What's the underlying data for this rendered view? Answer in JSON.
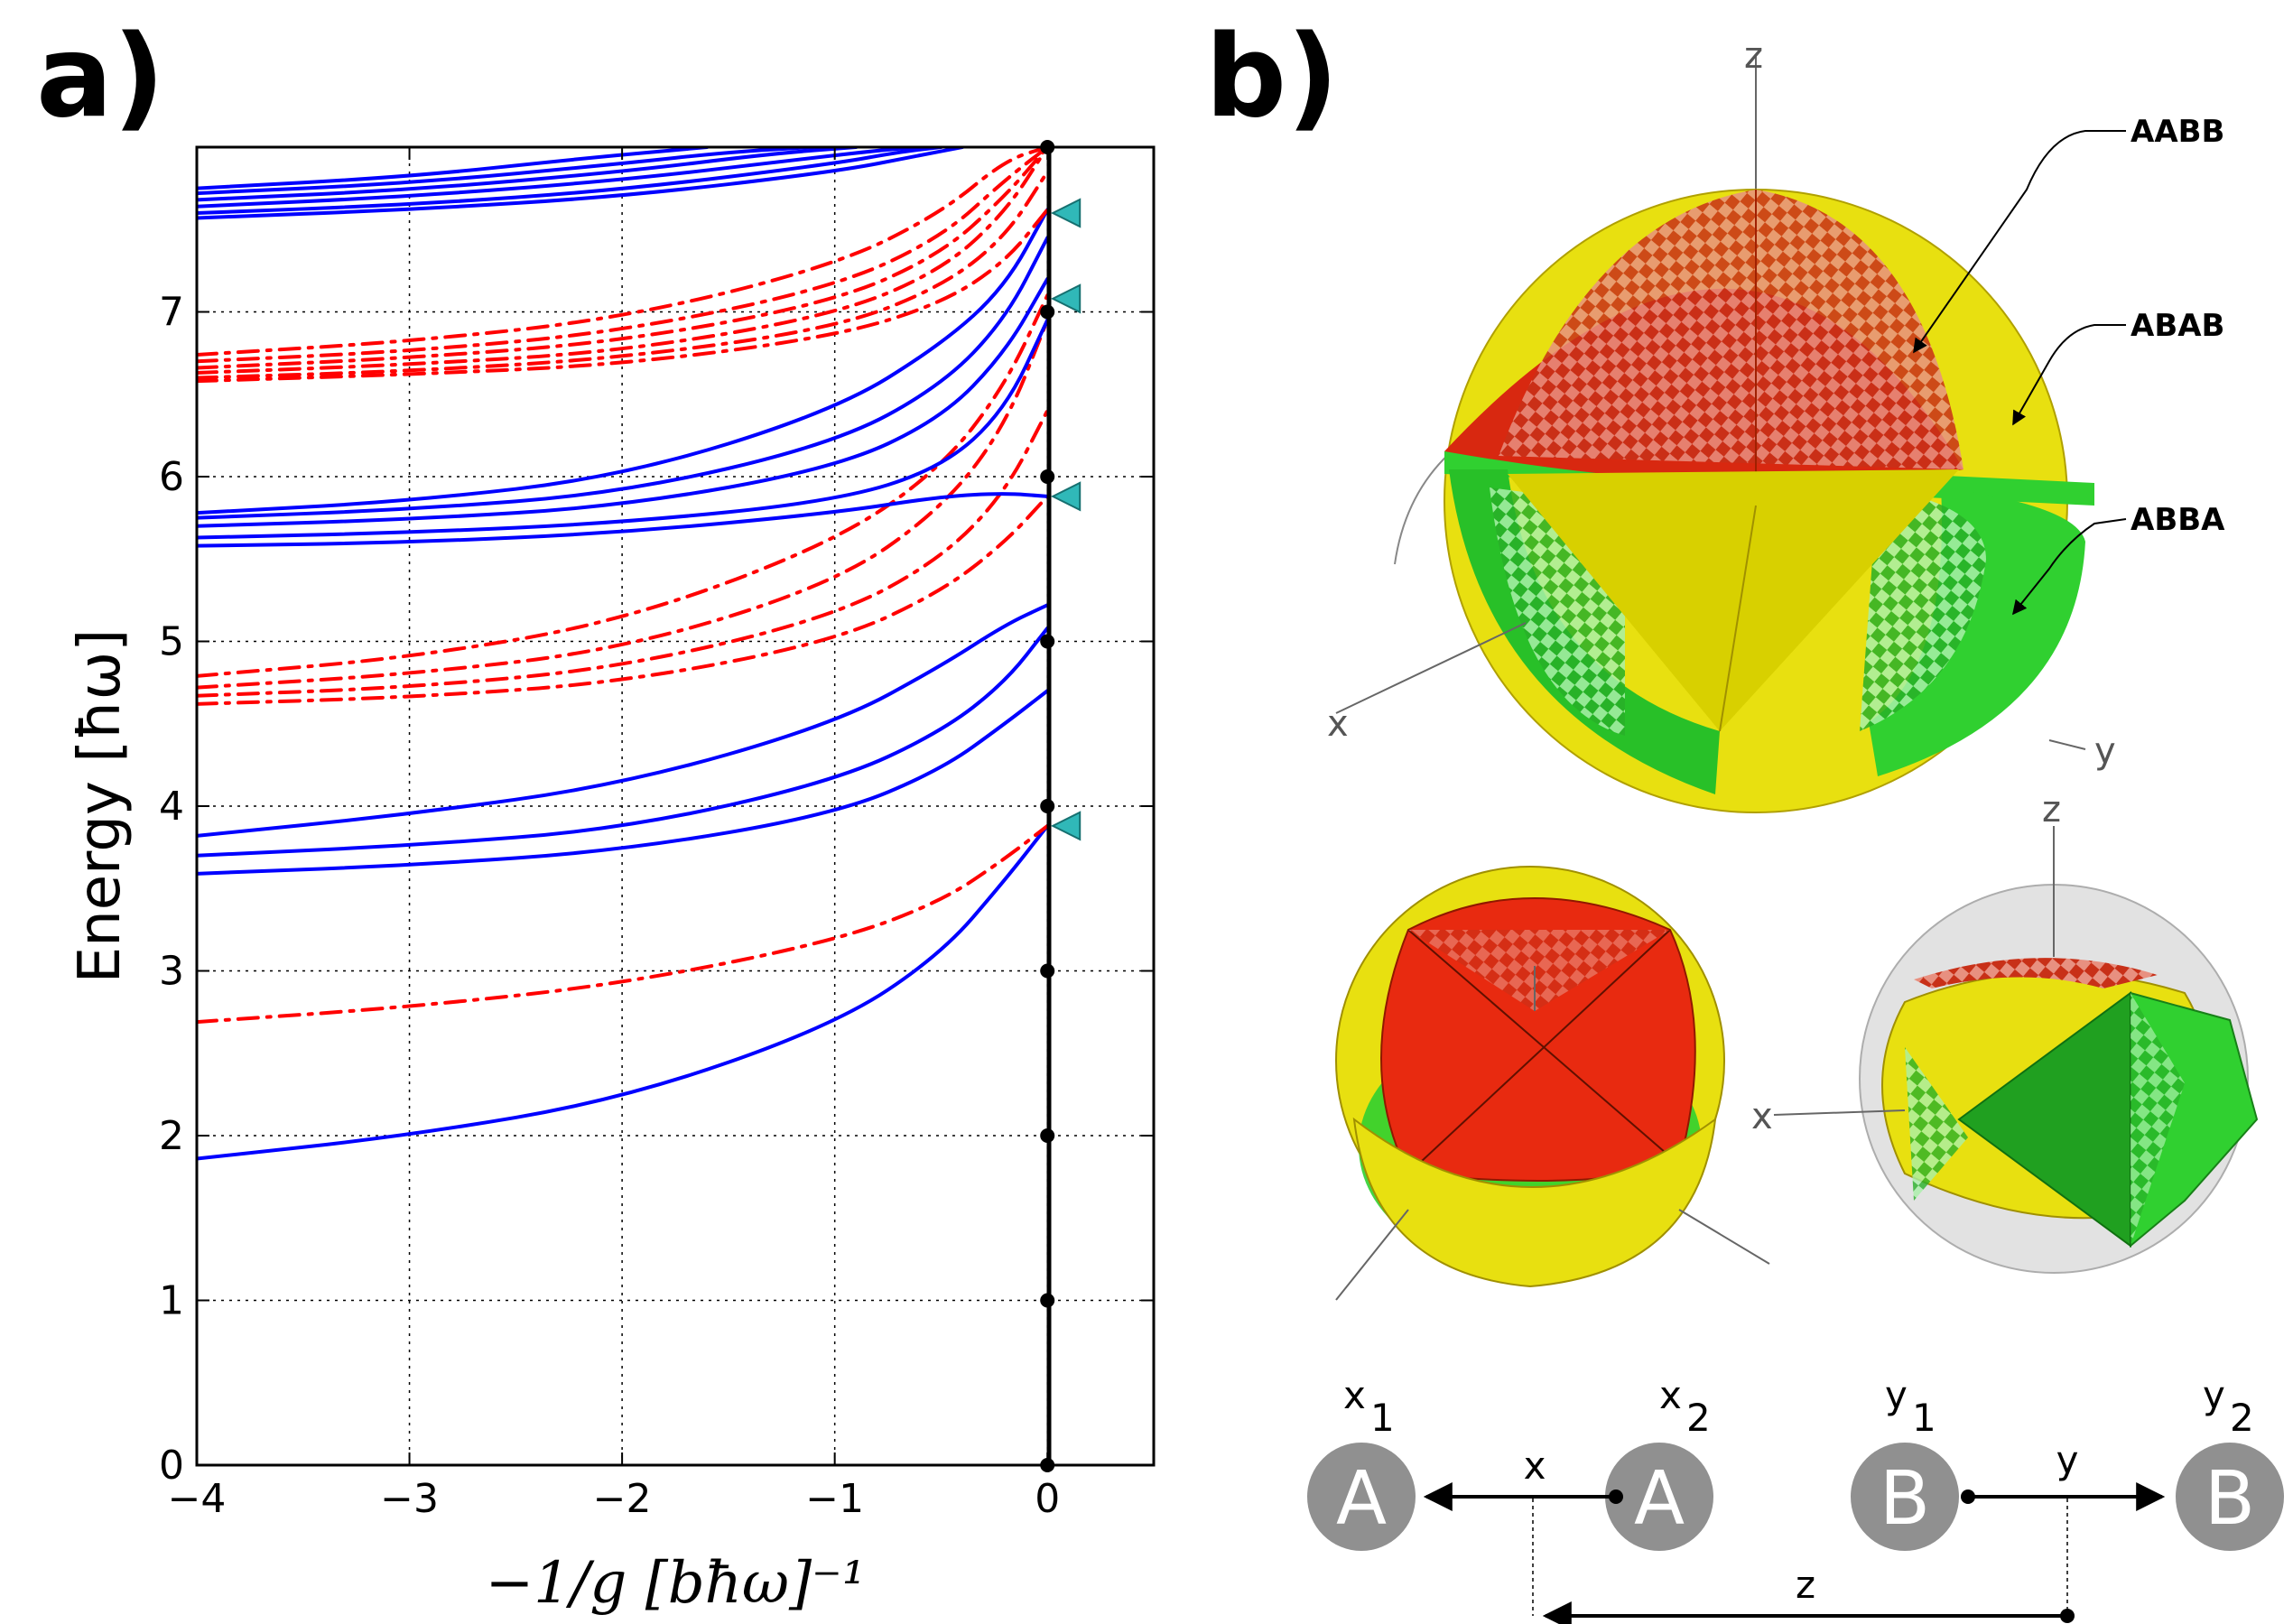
{
  "panel_a": {
    "label": "a)",
    "chart_data": {
      "type": "line",
      "xlabel": "−1/g [bħω]⁻¹",
      "ylabel": "Energy [ħω]",
      "xlim": [
        -4,
        0.5
      ],
      "ylim": [
        0,
        8
      ],
      "xticks": [
        -4,
        -3,
        -2,
        -1,
        0
      ],
      "xtick_labels": [
        "−4",
        "−3",
        "−2",
        "−1",
        "0"
      ],
      "yticks": [
        0,
        1,
        2,
        3,
        4,
        5,
        6,
        7
      ],
      "ytick_labels": [
        "0",
        "1",
        "2",
        "3",
        "4",
        "5",
        "6",
        "7"
      ],
      "grid": true,
      "solid_color": "#0000ff",
      "dashdot_color": "#ff0000",
      "marker_color": "#30b8b8",
      "unitary_points": [
        0,
        1,
        2,
        3,
        4,
        5,
        6,
        7,
        8
      ],
      "unitary_markers": [
        3.88,
        5.88,
        7.08,
        7.6
      ],
      "series": [
        {
          "style": "solid",
          "x": [
            -4,
            -3,
            -2,
            -1,
            -0.5,
            -0.2,
            0
          ],
          "y": [
            1.86,
            2.0,
            2.22,
            2.67,
            3.1,
            3.55,
            3.88
          ]
        },
        {
          "style": "dashdot",
          "x": [
            -4,
            -3,
            -2,
            -1,
            -0.5,
            -0.2,
            0
          ],
          "y": [
            2.69,
            2.78,
            2.92,
            3.18,
            3.42,
            3.68,
            3.88
          ]
        },
        {
          "style": "solid",
          "x": [
            -4,
            -3,
            -2,
            -1,
            -0.5,
            -0.2,
            0
          ],
          "y": [
            3.59,
            3.64,
            3.73,
            3.95,
            4.22,
            4.5,
            4.7
          ]
        },
        {
          "style": "solid",
          "x": [
            -4,
            -3,
            -2,
            -1,
            -0.5,
            -0.2,
            0
          ],
          "y": [
            3.7,
            3.76,
            3.86,
            4.15,
            4.45,
            4.75,
            5.08
          ]
        },
        {
          "style": "solid",
          "x": [
            -4,
            -3,
            -2,
            -1,
            -0.5,
            -0.2,
            0
          ],
          "y": [
            3.82,
            3.95,
            4.13,
            4.5,
            4.85,
            5.1,
            5.22
          ]
        },
        {
          "style": "dashdot",
          "x": [
            -4,
            -3,
            -2,
            -1,
            -0.5,
            -0.2,
            0
          ],
          "y": [
            4.62,
            4.66,
            4.75,
            5.0,
            5.3,
            5.6,
            5.88
          ]
        },
        {
          "style": "dashdot",
          "x": [
            -4,
            -3,
            -2,
            -1,
            -0.5,
            -0.2,
            0
          ],
          "y": [
            4.67,
            4.72,
            4.84,
            5.15,
            5.5,
            5.9,
            6.4
          ]
        },
        {
          "style": "dashdot",
          "x": [
            -4,
            -3,
            -2,
            -1,
            -0.5,
            -0.2,
            0
          ],
          "y": [
            4.72,
            4.8,
            4.95,
            5.35,
            5.8,
            6.3,
            6.95
          ]
        },
        {
          "style": "dashdot",
          "x": [
            -4,
            -3,
            -2,
            -1,
            -0.5,
            -0.2,
            0
          ],
          "y": [
            4.79,
            4.9,
            5.12,
            5.6,
            6.05,
            6.55,
            7.1
          ]
        },
        {
          "style": "solid",
          "x": [
            -4,
            -3,
            -2,
            -1,
            -0.5,
            -0.2,
            0
          ],
          "y": [
            5.58,
            5.6,
            5.66,
            5.78,
            5.88,
            5.9,
            5.88
          ]
        },
        {
          "style": "solid",
          "x": [
            -4,
            -3,
            -2,
            -1,
            -0.5,
            -0.2,
            0
          ],
          "y": [
            5.63,
            5.66,
            5.72,
            5.85,
            6.05,
            6.4,
            6.95
          ]
        },
        {
          "style": "solid",
          "x": [
            -4,
            -3,
            -2,
            -1,
            -0.5,
            -0.2,
            0
          ],
          "y": [
            5.7,
            5.74,
            5.82,
            6.05,
            6.35,
            6.75,
            7.2
          ]
        },
        {
          "style": "solid",
          "x": [
            -4,
            -3,
            -2,
            -1,
            -0.5,
            -0.2,
            0
          ],
          "y": [
            5.75,
            5.8,
            5.9,
            6.2,
            6.55,
            6.95,
            7.45
          ]
        },
        {
          "style": "solid",
          "x": [
            -4,
            -3,
            -2,
            -1,
            -0.5,
            -0.2,
            0
          ],
          "y": [
            5.78,
            5.85,
            6.0,
            6.4,
            6.8,
            7.15,
            7.62
          ]
        },
        {
          "style": "dashdot",
          "x": [
            -4,
            -3,
            -2,
            -1,
            -0.5,
            -0.2,
            0
          ],
          "y": [
            6.58,
            6.62,
            6.68,
            6.85,
            7.05,
            7.3,
            7.62
          ]
        },
        {
          "style": "dashdot",
          "x": [
            -4,
            -3,
            -2,
            -1,
            -0.5,
            -0.2,
            0
          ],
          "y": [
            6.6,
            6.64,
            6.72,
            6.9,
            7.15,
            7.45,
            7.85
          ]
        },
        {
          "style": "dashdot",
          "x": [
            -4,
            -3,
            -2,
            -1,
            -0.5,
            -0.2,
            0
          ],
          "y": [
            6.63,
            6.68,
            6.76,
            6.98,
            7.25,
            7.6,
            8.0
          ]
        },
        {
          "style": "dashdot",
          "x": [
            -4,
            -3,
            -2,
            -1,
            -0.5,
            -0.2,
            0
          ],
          "y": [
            6.66,
            6.72,
            6.82,
            7.06,
            7.35,
            7.7,
            8.0
          ]
        },
        {
          "style": "dashdot",
          "x": [
            -4,
            -3,
            -2,
            -1,
            -0.5,
            -0.2,
            0
          ],
          "y": [
            6.7,
            6.76,
            6.88,
            7.15,
            7.45,
            7.8,
            8.0
          ]
        },
        {
          "style": "dashdot",
          "x": [
            -4,
            -3,
            -2,
            -1,
            -0.5,
            -0.2,
            0
          ],
          "y": [
            6.74,
            6.82,
            6.96,
            7.28,
            7.6,
            7.92,
            8.0
          ]
        },
        {
          "style": "solid",
          "x": [
            -4,
            -3,
            -2,
            -1,
            -0.6,
            -0.4
          ],
          "y": [
            7.57,
            7.62,
            7.7,
            7.85,
            7.95,
            8.0
          ]
        },
        {
          "style": "solid",
          "x": [
            -4,
            -3,
            -2,
            -1,
            -0.7,
            -0.5
          ],
          "y": [
            7.6,
            7.65,
            7.74,
            7.9,
            7.97,
            8.0
          ]
        },
        {
          "style": "solid",
          "x": [
            -4,
            -3,
            -2,
            -1.2,
            -0.8,
            -0.6
          ],
          "y": [
            7.64,
            7.7,
            7.8,
            7.92,
            7.98,
            8.0
          ]
        },
        {
          "style": "solid",
          "x": [
            -4,
            -3,
            -2,
            -1.3,
            -0.9
          ],
          "y": [
            7.68,
            7.74,
            7.85,
            7.96,
            8.0
          ]
        },
        {
          "style": "solid",
          "x": [
            -4,
            -3,
            -2,
            -1.5,
            -1.1
          ],
          "y": [
            7.72,
            7.78,
            7.9,
            7.97,
            8.0
          ]
        },
        {
          "style": "solid",
          "x": [
            -4,
            -3,
            -2.2,
            -1.6
          ],
          "y": [
            7.75,
            7.82,
            7.93,
            8.0
          ]
        }
      ]
    }
  },
  "panel_b": {
    "label": "b)",
    "symmetry_labels": [
      "AABB",
      "ABAB",
      "ABBA"
    ],
    "axis_letters": {
      "x": "x",
      "y": "y",
      "z": "z"
    },
    "colors": {
      "red": "#e83010",
      "yellow": "#e8e010",
      "green": "#30d030",
      "gray": "#d8d8d8"
    },
    "coordinates": {
      "atoms": [
        "A",
        "A",
        "B",
        "B"
      ],
      "atom_labels": [
        "x",
        "x",
        "y",
        "y"
      ],
      "atom_subscripts": [
        "1",
        "2",
        "1",
        "2"
      ],
      "x_label": "x",
      "y_label": "y",
      "z_label": "z",
      "atom_color": "#909090"
    }
  }
}
